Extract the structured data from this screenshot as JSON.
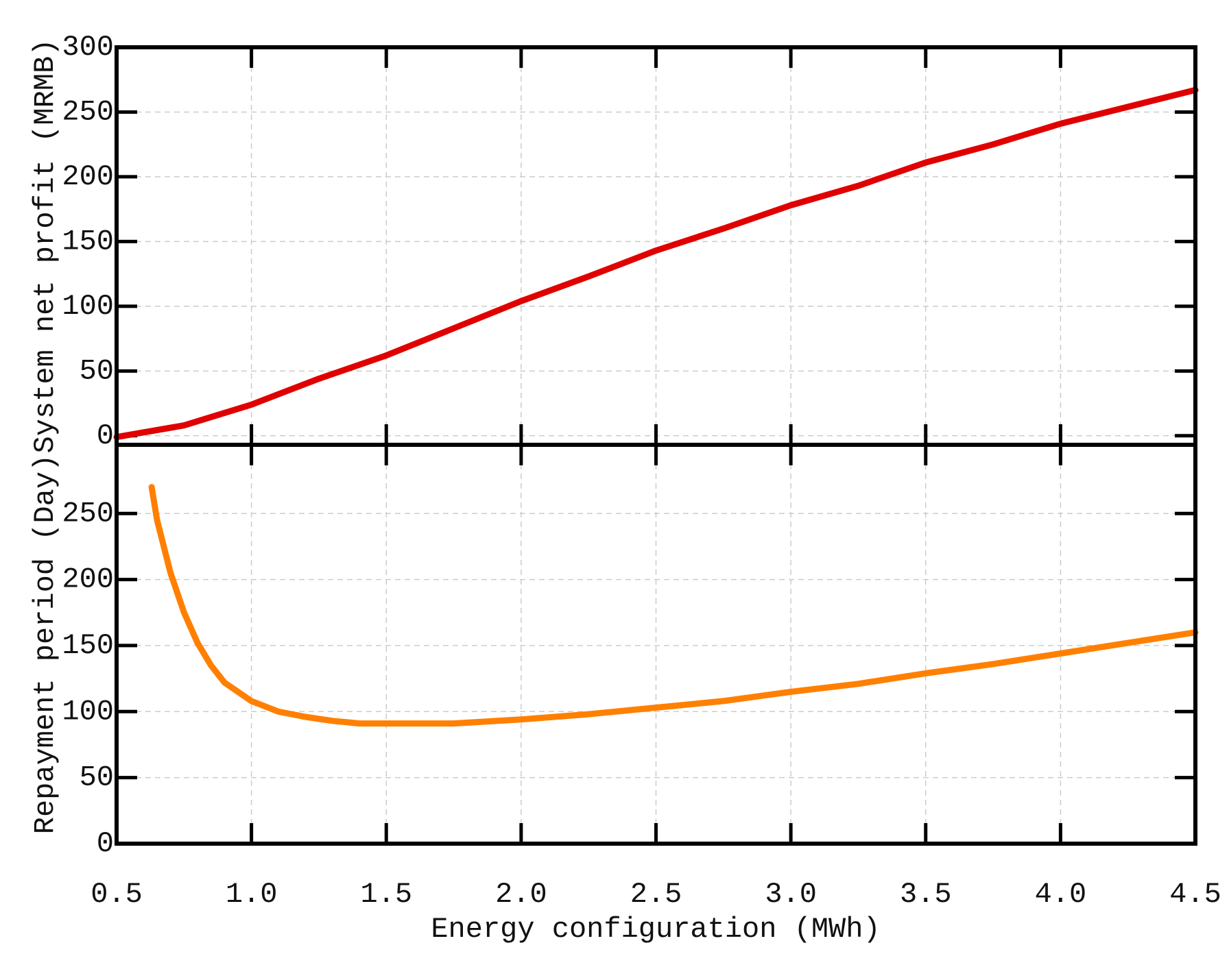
{
  "chart_data": [
    {
      "type": "line",
      "y_label": "System net profit (MRMB)",
      "x": [
        0.5,
        0.75,
        1.0,
        1.25,
        1.5,
        1.75,
        2.0,
        2.25,
        2.5,
        2.75,
        3.0,
        3.25,
        3.5,
        3.75,
        4.0,
        4.25,
        4.5
      ],
      "values": [
        -1,
        8,
        24,
        44,
        62,
        83,
        104,
        123,
        143,
        160,
        178,
        193,
        211,
        225,
        241,
        254,
        267
      ],
      "color": "#e00000",
      "xlim": [
        0.5,
        4.5
      ],
      "xticks": [
        0.5,
        1,
        1.5,
        2,
        2.5,
        3,
        3.5,
        4,
        4.5
      ],
      "ylim": [
        -7,
        300
      ],
      "yticks": [
        0,
        50,
        100,
        150,
        200,
        250,
        300
      ],
      "grid": true
    },
    {
      "type": "line",
      "y_label": "Repayment period (Day)",
      "x_label": "Energy configuration (MWh)",
      "x": [
        0.63,
        0.65,
        0.7,
        0.75,
        0.8,
        0.85,
        0.9,
        1.0,
        1.1,
        1.2,
        1.3,
        1.4,
        1.5,
        1.75,
        2.0,
        2.25,
        2.5,
        2.75,
        3.0,
        3.25,
        3.5,
        3.75,
        4.0,
        4.25,
        4.5
      ],
      "values": [
        270,
        245,
        205,
        175,
        152,
        135,
        122,
        108,
        100,
        96,
        93,
        91,
        91,
        91,
        94,
        98,
        103,
        108,
        115,
        121,
        129,
        136,
        144,
        152,
        160
      ],
      "color": "#ff8000",
      "xlim": [
        0.5,
        4.5
      ],
      "xticks": [
        {
          "value": 0.5,
          "label": "0.5"
        },
        {
          "value": 1,
          "label": "1.0"
        },
        {
          "value": 1.5,
          "label": "1.5"
        },
        {
          "value": 2,
          "label": "2.0"
        },
        {
          "value": 2.5,
          "label": "2.5"
        },
        {
          "value": 3,
          "label": "3.0"
        },
        {
          "value": 3.5,
          "label": "3.5"
        },
        {
          "value": 4,
          "label": "4.0"
        },
        {
          "value": 4.5,
          "label": "4.5"
        }
      ],
      "ylim": [
        0,
        302
      ],
      "yticks": [
        0,
        50,
        100,
        150,
        200,
        250
      ],
      "grid": true
    }
  ]
}
